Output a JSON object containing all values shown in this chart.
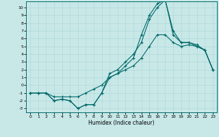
{
  "xlabel": "Humidex (Indice chaleur)",
  "xlim": [
    -0.5,
    23.5
  ],
  "ylim": [
    -3.5,
    10.8
  ],
  "xticks": [
    0,
    1,
    2,
    3,
    4,
    5,
    6,
    7,
    8,
    9,
    10,
    11,
    12,
    13,
    14,
    15,
    16,
    17,
    18,
    19,
    20,
    21,
    22,
    23
  ],
  "yticks": [
    -3,
    -2,
    -1,
    0,
    1,
    2,
    3,
    4,
    5,
    6,
    7,
    8,
    9,
    10
  ],
  "bg_color": "#c8e8e8",
  "line_color": "#006868",
  "grid_color": "#b0d8d8",
  "curve_high_x": [
    0,
    1,
    2,
    3,
    4,
    5,
    6,
    7,
    8,
    9,
    10,
    11,
    12,
    13,
    14,
    15,
    16,
    17,
    18,
    19,
    20,
    21,
    22,
    23
  ],
  "curve_high_y": [
    -1,
    -1,
    -1,
    -2,
    -1.8,
    -2,
    -3,
    -2.5,
    -2.5,
    -1,
    1,
    1.5,
    2.5,
    3.5,
    6.5,
    9,
    10.5,
    11,
    6.5,
    5.5,
    5.5,
    5,
    4.5,
    2
  ],
  "curve_mid_x": [
    0,
    1,
    2,
    3,
    4,
    5,
    6,
    7,
    8,
    9,
    10,
    11,
    12,
    13,
    14,
    15,
    16,
    17,
    18,
    19,
    20,
    21,
    22,
    23
  ],
  "curve_mid_y": [
    -1,
    -1,
    -1,
    -2,
    -1.8,
    -2,
    -3,
    -2.5,
    -2.5,
    -1,
    1.5,
    2,
    3,
    4,
    5.5,
    8.5,
    10,
    11,
    7,
    5.5,
    5.5,
    5.2,
    4.5,
    2
  ],
  "curve_low_x": [
    0,
    1,
    2,
    3,
    4,
    5,
    6,
    7,
    8,
    9,
    10,
    11,
    12,
    13,
    14,
    15,
    16,
    17,
    18,
    19,
    20,
    21,
    22,
    23
  ],
  "curve_low_y": [
    -1,
    -1,
    -1,
    -1.5,
    -1.5,
    -1.5,
    -1.5,
    -1,
    -0.5,
    0,
    1,
    1.5,
    2,
    2.5,
    3.5,
    5,
    6.5,
    6.5,
    5.5,
    5,
    5.2,
    5,
    4.5,
    2
  ]
}
